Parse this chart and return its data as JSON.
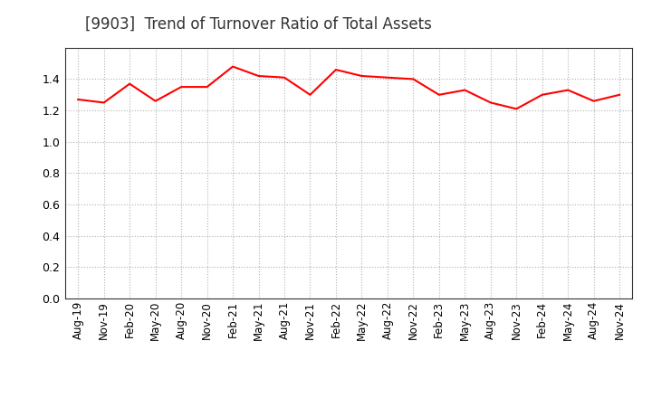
{
  "title": "[9903]  Trend of Turnover Ratio of Total Assets",
  "line_color": "#FF0000",
  "line_width": 1.5,
  "background_color": "#FFFFFF",
  "grid_color": "#AAAAAA",
  "ylim": [
    0.0,
    1.6
  ],
  "yticks": [
    0.0,
    0.2,
    0.4,
    0.6,
    0.8,
    1.0,
    1.2,
    1.4
  ],
  "labels": [
    "Aug-19",
    "Nov-19",
    "Feb-20",
    "May-20",
    "Aug-20",
    "Nov-20",
    "Feb-21",
    "May-21",
    "Aug-21",
    "Nov-21",
    "Feb-22",
    "May-22",
    "Aug-22",
    "Nov-22",
    "Feb-23",
    "May-23",
    "Aug-23",
    "Nov-23",
    "Feb-24",
    "May-24",
    "Aug-24",
    "Nov-24"
  ],
  "values": [
    1.27,
    1.25,
    1.37,
    1.26,
    1.35,
    1.35,
    1.48,
    1.42,
    1.41,
    1.3,
    1.46,
    1.42,
    1.41,
    1.4,
    1.3,
    1.33,
    1.25,
    1.21,
    1.3,
    1.33,
    1.26,
    1.3
  ],
  "title_fontsize": 12,
  "tick_fontsize": 8.5,
  "ytick_fontsize": 9
}
